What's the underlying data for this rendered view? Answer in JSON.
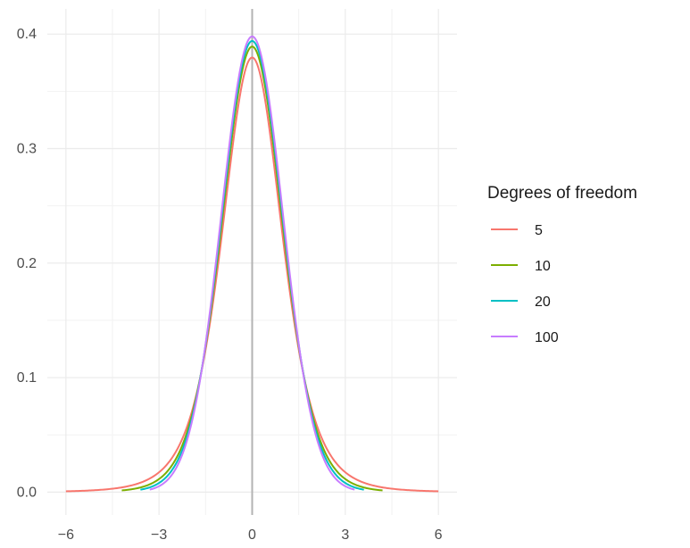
{
  "chart_data": {
    "type": "line",
    "title": "",
    "xlabel": "",
    "ylabel": "",
    "xlim": [
      -6,
      6
    ],
    "ylim": [
      0,
      0.4
    ],
    "x_ticks": [
      -6,
      -3,
      0,
      3,
      6
    ],
    "x_tick_labels": [
      "−6",
      "−3",
      "0",
      "3",
      "6"
    ],
    "y_ticks": [
      0.0,
      0.1,
      0.2,
      0.3,
      0.4
    ],
    "y_tick_labels": [
      "0.0",
      "0.1",
      "0.2",
      "0.3",
      "0.4"
    ],
    "grid": true,
    "vertical_reference_line": 0,
    "legend": {
      "title": "Degrees of freedom",
      "position": "right"
    },
    "series": [
      {
        "name": "5",
        "df": 5,
        "x_range": [
          -6,
          6
        ],
        "peak": 0.38,
        "color": "#F8766D"
      },
      {
        "name": "10",
        "df": 10,
        "x_range": [
          -4.2,
          4.2
        ],
        "peak": 0.389,
        "color": "#7CAE00"
      },
      {
        "name": "20",
        "df": 20,
        "x_range": [
          -3.6,
          3.6
        ],
        "peak": 0.394,
        "color": "#00BFC4"
      },
      {
        "name": "100",
        "df": 100,
        "x_range": [
          -3.3,
          3.3
        ],
        "peak": 0.398,
        "color": "#C77CFF"
      }
    ]
  }
}
